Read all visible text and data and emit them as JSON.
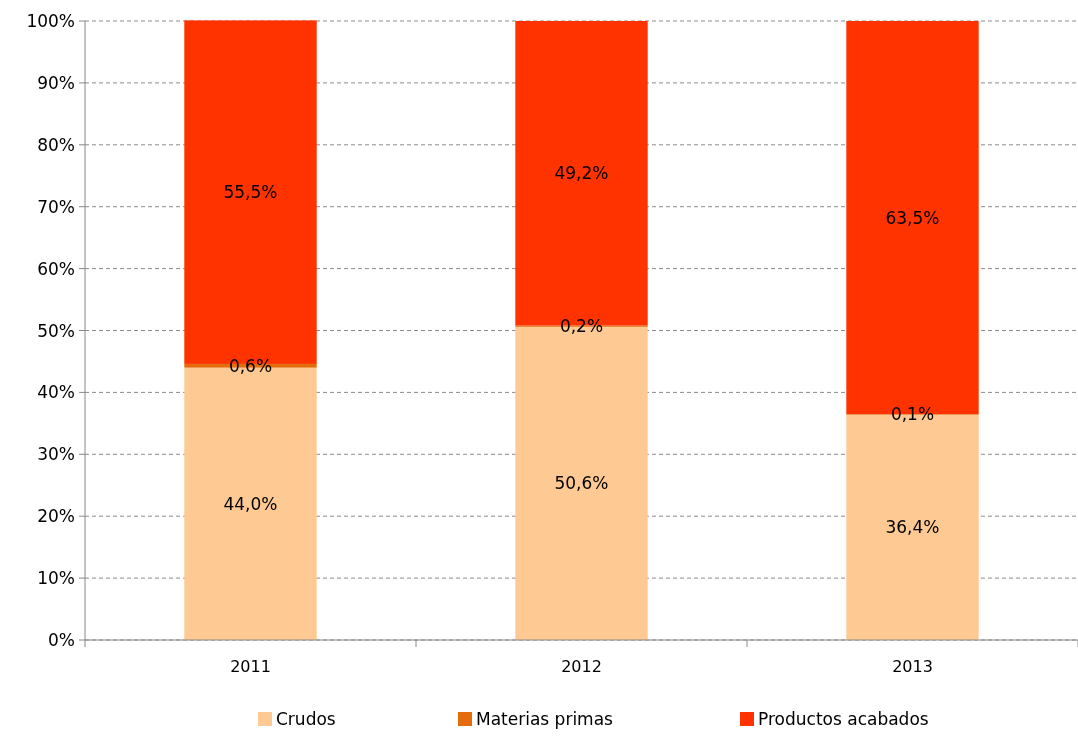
{
  "chart_data": {
    "type": "bar",
    "stacked": true,
    "categories": [
      "2011",
      "2012",
      "2013"
    ],
    "series": [
      {
        "name": "Crudos",
        "color": "#ffc993",
        "values": [
          44.0,
          50.6,
          36.4
        ],
        "value_labels": [
          "44,0%",
          "50,6%",
          "36,4%"
        ]
      },
      {
        "name": "Materias primas",
        "color": "#e46c0a",
        "values": [
          0.6,
          0.2,
          0.1
        ],
        "value_labels": [
          "0,6%",
          "0,2%",
          "0,1%"
        ]
      },
      {
        "name": "Productos acabados",
        "color": "#ff3300",
        "values": [
          55.5,
          49.2,
          63.5
        ],
        "value_labels": [
          "55,5%",
          "49,2%",
          "63,5%"
        ]
      }
    ],
    "ylim": [
      0,
      100
    ],
    "yticks": [
      {
        "value": 0,
        "label": "0%"
      },
      {
        "value": 10,
        "label": "10%"
      },
      {
        "value": 20,
        "label": "20%"
      },
      {
        "value": 30,
        "label": "30%"
      },
      {
        "value": 40,
        "label": "40%"
      },
      {
        "value": 50,
        "label": "50%"
      },
      {
        "value": 60,
        "label": "60%"
      },
      {
        "value": 70,
        "label": "70%"
      },
      {
        "value": 80,
        "label": "80%"
      },
      {
        "value": 90,
        "label": "90%"
      },
      {
        "value": 100,
        "label": "100%"
      }
    ],
    "grid": "y",
    "line_style": "dashed",
    "legend": "bottom"
  }
}
